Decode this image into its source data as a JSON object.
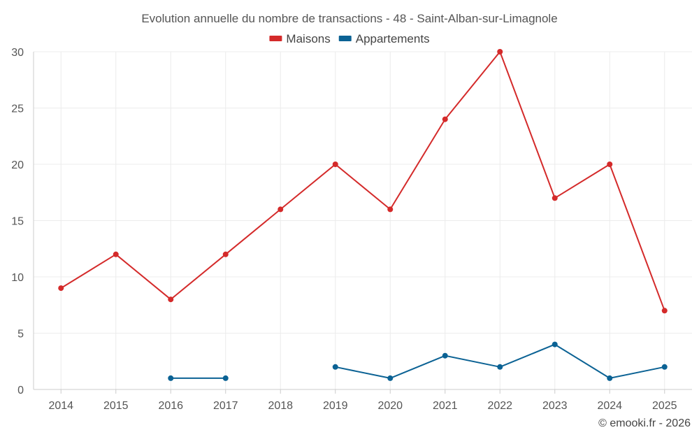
{
  "chart_data": {
    "type": "line",
    "title": "Evolution annuelle du nombre de transactions - 48 - Saint-Alban-sur-Limagnole",
    "xlabel": "",
    "ylabel": "",
    "categories": [
      "2014",
      "2015",
      "2016",
      "2017",
      "2018",
      "2019",
      "2020",
      "2021",
      "2022",
      "2023",
      "2024",
      "2025"
    ],
    "ylim": [
      0,
      30
    ],
    "yticks": [
      0,
      5,
      10,
      15,
      20,
      25,
      30
    ],
    "grid": true,
    "legend_position": "top-center",
    "series": [
      {
        "name": "Maisons",
        "color": "#d42a2a",
        "values": [
          9,
          12,
          8,
          12,
          16,
          20,
          16,
          24,
          30,
          17,
          20,
          7
        ]
      },
      {
        "name": "Appartements",
        "color": "#0b6294",
        "values": [
          null,
          null,
          1,
          1,
          null,
          2,
          1,
          3,
          2,
          4,
          1,
          2
        ]
      }
    ]
  },
  "footer": {
    "credit": "© emooki.fr - 2026"
  }
}
